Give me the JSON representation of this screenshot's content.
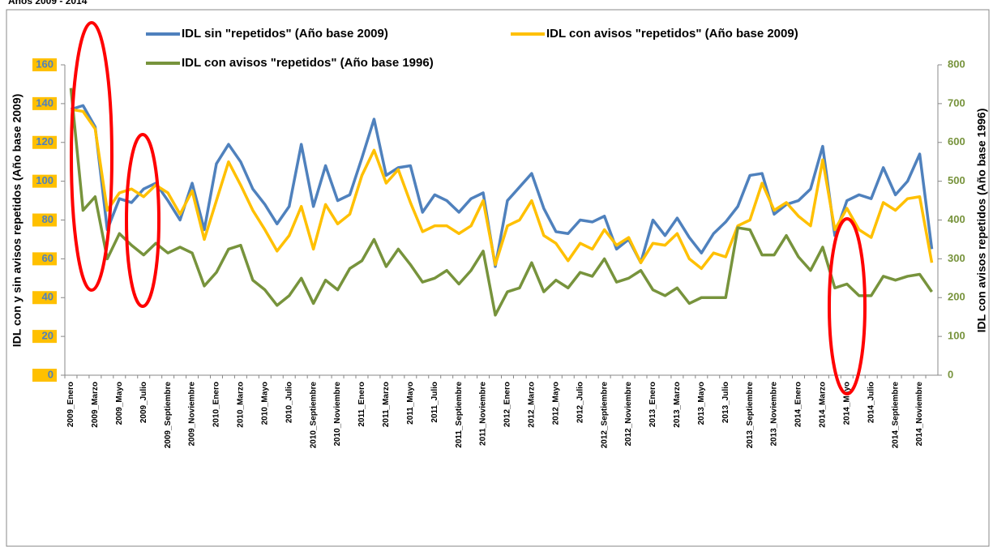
{
  "chart_data": {
    "type": "line",
    "subtitle": "Años 2009 - 2014",
    "y_label": "IDL con y sin avisos repetidos (Año base 2009)",
    "y2_label": "IDL con avisos repetidos (Año base 1996)",
    "categories": [
      "2009_Enero",
      null,
      "2009_Marzo",
      null,
      "2009_Mayo",
      null,
      "2009_Julio",
      null,
      "2009_Septiembre",
      null,
      "2009_Noviembre",
      null,
      "2010_Enero",
      null,
      "2010_Marzo",
      null,
      "2010_Mayo",
      null,
      "2010_Julio",
      null,
      "2010_Septiembre",
      null,
      "2010_Noviembre",
      null,
      "2011_Enero",
      null,
      "2011_Marzo",
      null,
      "2011_Mayo",
      null,
      "2011_Julio",
      null,
      "2011_Septiembre",
      null,
      "2011_Noviembre",
      null,
      "2012_Enero",
      null,
      "2012_Marzo",
      null,
      "2012_Mayo",
      null,
      "2012_Julio",
      null,
      "2012_Septiembre",
      null,
      "2012_Noviembre",
      null,
      "2013_Enero",
      null,
      "2013_Marzo",
      null,
      "2013_Mayo",
      null,
      "2013_Julio",
      null,
      "2013_Septiembre",
      null,
      "2013_Noviembre",
      null,
      "2014_Enero",
      null,
      "2014_Marzo",
      null,
      "2014_Mayo",
      null,
      "2014_Julio",
      null,
      "2014_Septiembre",
      null,
      "2014_Noviembre",
      null
    ],
    "series": [
      {
        "name": "IDL sin \"repetidos\" (Año base 2009)",
        "color": "#4f81bd",
        "axis": "y",
        "values": [
          137,
          139,
          128,
          75,
          91,
          89,
          96,
          99,
          90,
          80,
          99,
          75,
          109,
          119,
          110,
          96,
          88,
          78,
          87,
          119,
          87,
          108,
          90,
          93,
          112,
          132,
          103,
          107,
          108,
          84,
          93,
          90,
          84,
          91,
          94,
          56,
          90,
          97,
          104,
          86,
          74,
          73,
          80,
          79,
          82,
          65,
          70,
          58,
          80,
          72,
          81,
          71,
          63,
          73,
          79,
          87,
          103,
          104,
          83,
          88,
          90,
          96,
          118,
          72,
          90,
          93,
          91,
          107,
          93,
          100,
          114,
          65
        ]
      },
      {
        "name": "IDL con avisos  \"repetidos\" (Año base 2009)",
        "color": "#ffc000",
        "axis": "y",
        "values": [
          137,
          136,
          127,
          85,
          94,
          96,
          92,
          98,
          94,
          83,
          95,
          70,
          90,
          110,
          98,
          85,
          75,
          64,
          72,
          87,
          65,
          88,
          78,
          83,
          103,
          116,
          99,
          106,
          89,
          74,
          77,
          77,
          73,
          77,
          90,
          57,
          77,
          80,
          90,
          72,
          68,
          59,
          68,
          65,
          75,
          67,
          71,
          58,
          68,
          67,
          73,
          60,
          55,
          63,
          61,
          77,
          80,
          99,
          85,
          89,
          82,
          77,
          111,
          75,
          86,
          75,
          71,
          89,
          85,
          91,
          92,
          58
        ]
      },
      {
        "name": "IDL con avisos \"repetidos\" (Año  base 1996)",
        "color": "#77933c",
        "axis": "y2",
        "values": [
          740,
          425,
          460,
          300,
          365,
          335,
          310,
          340,
          315,
          330,
          315,
          230,
          265,
          325,
          335,
          245,
          220,
          180,
          205,
          250,
          185,
          245,
          220,
          275,
          295,
          350,
          280,
          325,
          285,
          240,
          250,
          270,
          235,
          270,
          320,
          155,
          215,
          225,
          290,
          215,
          245,
          225,
          265,
          255,
          300,
          240,
          250,
          270,
          220,
          205,
          225,
          185,
          200,
          200,
          200,
          380,
          375,
          310,
          310,
          360,
          305,
          270,
          330,
          225,
          235,
          205,
          205,
          255,
          245,
          255,
          260,
          215
        ]
      }
    ],
    "ylim": [
      0,
      160
    ],
    "yticks": [
      0,
      20,
      40,
      60,
      80,
      100,
      120,
      140,
      160
    ],
    "y2lim": [
      0,
      800
    ],
    "y2ticks": [
      0,
      100,
      200,
      300,
      400,
      500,
      600,
      700,
      800
    ],
    "y_tick_color": "#4f81bd",
    "y_tick_bg": "#ffc000",
    "y2_tick_color": "#77933c"
  }
}
